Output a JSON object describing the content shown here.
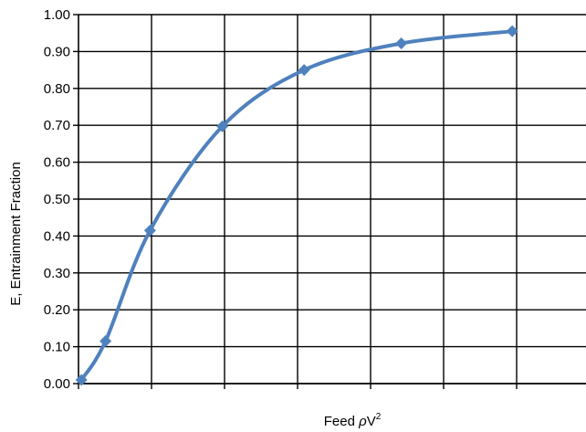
{
  "chart_data": {
    "type": "line",
    "title": "",
    "xlabel": {
      "prefix": "Feed ",
      "symbol": "ρ",
      "base": "V",
      "superscript": "2"
    },
    "ylabel": "E, Entrainment Fraction",
    "ylim": [
      0,
      1.0
    ],
    "y_ticks": [
      "0.00",
      "0.10",
      "0.20",
      "0.30",
      "0.40",
      "0.50",
      "0.60",
      "0.70",
      "0.80",
      "0.90",
      "1.00"
    ],
    "xlim": [
      0,
      7
    ],
    "x_grid_count": 7,
    "x_tick_labels_shown": false,
    "grid": true,
    "legend": "none",
    "series": [
      {
        "marker": "diamond",
        "color": "#4f81bd",
        "x": [
          0.04,
          0.37,
          0.98,
          1.97,
          3.09,
          4.42,
          5.94
        ],
        "y": [
          0.01,
          0.115,
          0.415,
          0.697,
          0.85,
          0.922,
          0.955
        ]
      }
    ]
  }
}
